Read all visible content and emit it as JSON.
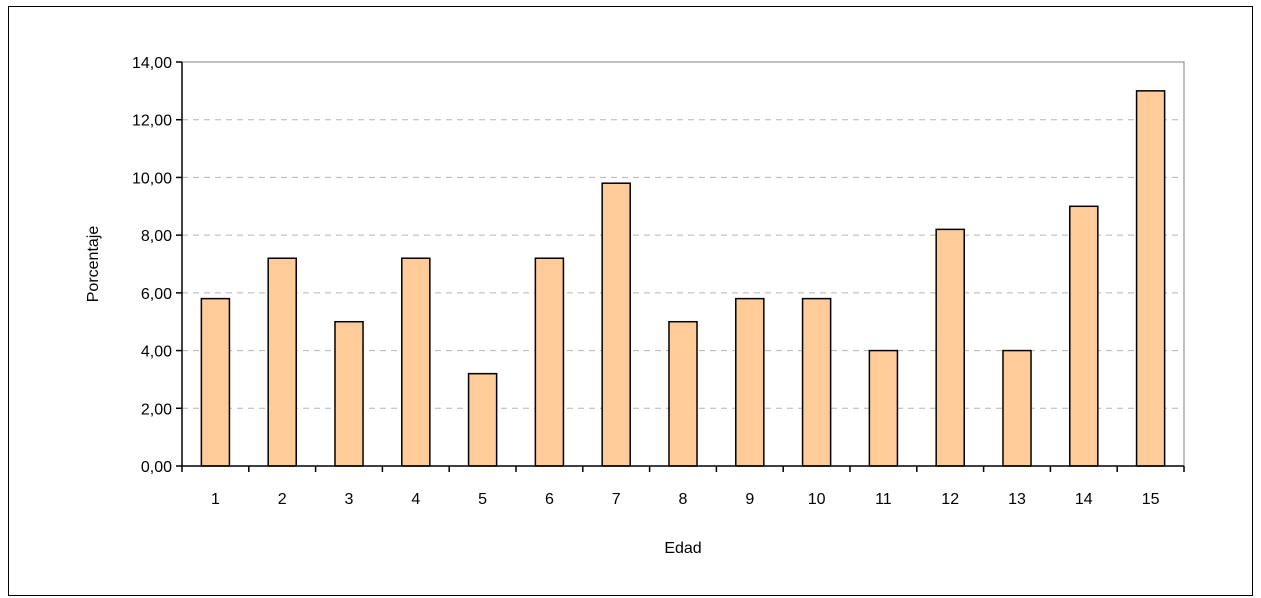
{
  "chart_data": {
    "type": "bar",
    "title": "",
    "xlabel": "Edad",
    "ylabel": "Porcentaje",
    "categories": [
      "1",
      "2",
      "3",
      "4",
      "5",
      "6",
      "7",
      "8",
      "9",
      "10",
      "11",
      "12",
      "13",
      "14",
      "15"
    ],
    "values": [
      5.8,
      7.2,
      5.0,
      7.2,
      3.2,
      7.2,
      9.8,
      5.0,
      5.8,
      5.8,
      4.0,
      8.2,
      4.0,
      9.0,
      13.0
    ],
    "ylim": [
      0,
      14
    ],
    "yticks": [
      "0,00",
      "2,00",
      "4,00",
      "6,00",
      "8,00",
      "10,00",
      "12,00",
      "14,00"
    ],
    "grid": true,
    "legend": "none",
    "colors": {
      "bar_fill": "#ffcc99",
      "bar_stroke": "#000000",
      "gridline": "#b3b3b3",
      "plot_border": "#808080",
      "axis": "#000000"
    }
  }
}
